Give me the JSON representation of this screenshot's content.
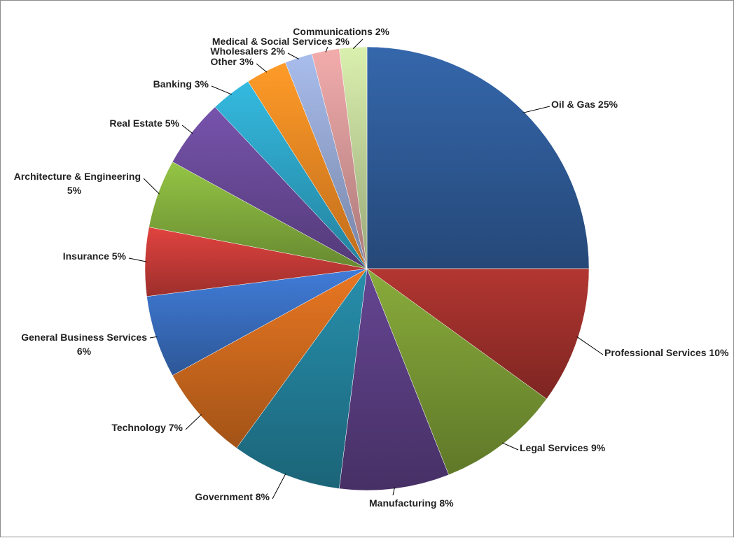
{
  "chart_data": {
    "type": "pie",
    "title": "",
    "slices": [
      {
        "label": "Oil & Gas",
        "value": 25,
        "text": "Oil & Gas 25%",
        "color": "#2F5C9A"
      },
      {
        "label": "Professional Services",
        "value": 10,
        "text": "Professional Services 10%",
        "color": "#A0302C"
      },
      {
        "label": "Legal Services",
        "value": 9,
        "text": "Legal Services 9%",
        "color": "#7A9A35"
      },
      {
        "label": "Manufacturing",
        "value": 8,
        "text": "Manufacturing 8%",
        "color": "#5A3E82"
      },
      {
        "label": "Government",
        "value": 8,
        "text": "Government 8%",
        "color": "#23809A"
      },
      {
        "label": "Technology",
        "value": 7,
        "text": "Technology 7%",
        "color": "#D06A1E"
      },
      {
        "label": "General Business Services",
        "value": 6,
        "text_lines": [
          "General Business Services",
          "6%"
        ],
        "color": "#3A6FC2"
      },
      {
        "label": "Insurance",
        "value": 5,
        "text": "Insurance 5%",
        "color": "#C93C38"
      },
      {
        "label": "Architecture & Engineering",
        "value": 5,
        "text_lines": [
          "Architecture & Engineering",
          "5%"
        ],
        "color": "#84B03E"
      },
      {
        "label": "Real Estate",
        "value": 5,
        "text": "Real Estate 5%",
        "color": "#6A4A9A"
      },
      {
        "label": "Banking",
        "value": 3,
        "text": "Banking 3%",
        "color": "#2EA6C8"
      },
      {
        "label": "Other",
        "value": 3,
        "text": "Other 3%",
        "color": "#F58A24"
      },
      {
        "label": "Wholesalers",
        "value": 2,
        "text": "Wholesalers 2%",
        "color": "#97A9D4"
      },
      {
        "label": "Medical & Social Services",
        "value": 2,
        "text": "Medical & Social Services 2%",
        "color": "#D99A9A"
      },
      {
        "label": "Communications",
        "value": 2,
        "text": "Communications 2%",
        "color": "#C3D69B"
      }
    ]
  }
}
